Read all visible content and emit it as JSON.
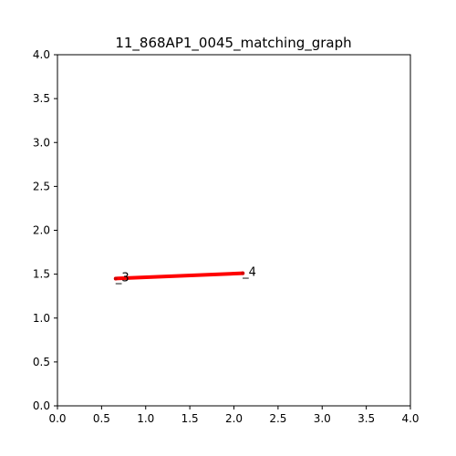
{
  "chart_data": {
    "type": "line",
    "title": "11_868AP1_0045_matching_graph",
    "xlabel": "",
    "ylabel": "",
    "xlim": [
      0,
      4
    ],
    "ylim": [
      0,
      4
    ],
    "x_ticks": [
      "0.0",
      "0.5",
      "1.0",
      "1.5",
      "2.0",
      "2.5",
      "3.0",
      "3.5",
      "4.0"
    ],
    "y_ticks": [
      "0.0",
      "0.5",
      "1.0",
      "1.5",
      "2.0",
      "2.5",
      "3.0",
      "3.5",
      "4.0"
    ],
    "grid": false,
    "nodes": [
      {
        "label": "_3",
        "x": 0.66,
        "y": 1.45
      },
      {
        "label": "_4",
        "x": 2.1,
        "y": 1.51
      }
    ],
    "edges": [
      {
        "from": 0,
        "to": 1,
        "color": "#ff0000"
      }
    ],
    "colors": {
      "edge": "#ff0000",
      "axes": "#000000",
      "background": "#ffffff"
    }
  }
}
